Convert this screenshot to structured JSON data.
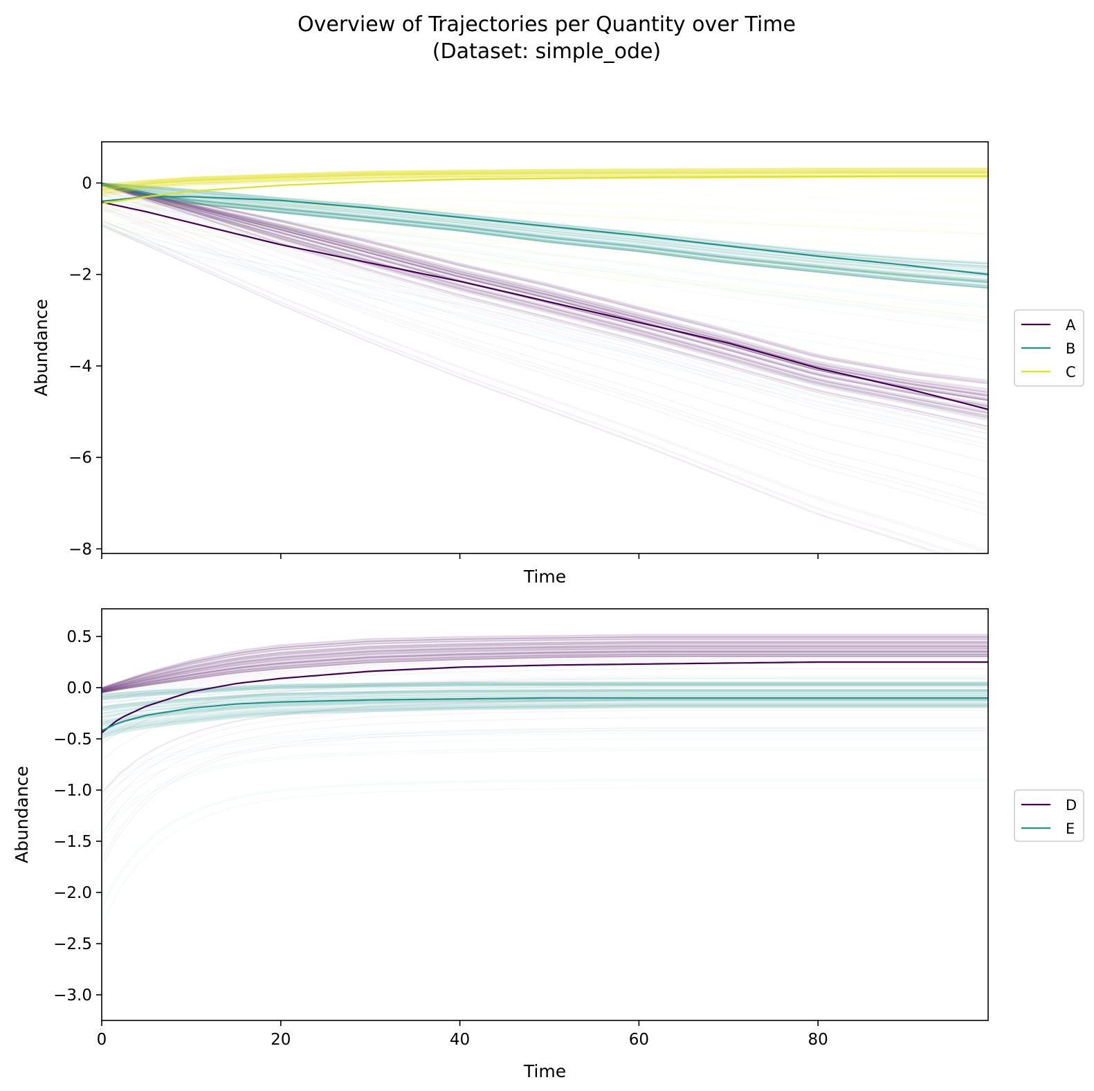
{
  "figure": {
    "title_line1": "Overview of Trajectories per Quantity over Time",
    "title_line2": "(Dataset: simple_ode)"
  },
  "chart_data": [
    {
      "type": "line",
      "xlabel": "Time",
      "ylabel": "Abundance",
      "xlim": [
        0,
        99
      ],
      "ylim": [
        -8.1,
        0.9
      ],
      "xticks": [
        0,
        20,
        40,
        60,
        80
      ],
      "xtick_labels_shown": false,
      "yticks": [
        0,
        -2,
        -4,
        -6,
        -8
      ],
      "ytick_labels": [
        "0",
        "−2",
        "−4",
        "−6",
        "−8"
      ],
      "grid": false,
      "legend_position": "right-center",
      "background_trajectories": "many faint semi-transparent sample trajectories per series",
      "x": [
        0,
        5,
        10,
        20,
        30,
        40,
        50,
        60,
        70,
        80,
        90,
        99
      ],
      "series": [
        {
          "name": "A",
          "color": "#440154",
          "values": [
            -0.42,
            -0.63,
            -0.87,
            -1.35,
            -1.75,
            -2.15,
            -2.6,
            -3.05,
            -3.5,
            -4.05,
            -4.5,
            -4.95
          ],
          "band_low": [
            -0.05,
            -0.38,
            -0.7,
            -1.35,
            -1.95,
            -2.5,
            -3.0,
            -3.5,
            -4.05,
            -4.6,
            -5.0,
            -5.4
          ],
          "band_high": [
            0.0,
            -0.2,
            -0.4,
            -0.8,
            -1.25,
            -1.75,
            -2.2,
            -2.7,
            -3.2,
            -3.75,
            -4.1,
            -4.3
          ]
        },
        {
          "name": "B",
          "color": "#21918c",
          "values": [
            -0.4,
            -0.3,
            -0.3,
            -0.38,
            -0.55,
            -0.75,
            -0.95,
            -1.15,
            -1.38,
            -1.6,
            -1.8,
            -2.0
          ],
          "band_low": [
            -0.05,
            -0.28,
            -0.45,
            -0.65,
            -0.85,
            -1.05,
            -1.3,
            -1.5,
            -1.75,
            -1.95,
            -2.15,
            -2.3
          ],
          "band_high": [
            0.0,
            -0.05,
            -0.12,
            -0.3,
            -0.45,
            -0.65,
            -0.85,
            -1.05,
            -1.25,
            -1.45,
            -1.6,
            -1.7
          ]
        },
        {
          "name": "C",
          "color": "#dde318",
          "values": [
            -0.45,
            -0.3,
            -0.18,
            -0.05,
            0.03,
            0.08,
            0.1,
            0.12,
            0.13,
            0.14,
            0.15,
            0.15
          ],
          "band_low": [
            -0.3,
            -0.12,
            -0.05,
            0.02,
            0.07,
            0.1,
            0.1,
            0.1,
            0.1,
            0.1,
            0.1,
            0.1
          ],
          "band_high": [
            0.0,
            0.08,
            0.15,
            0.22,
            0.28,
            0.3,
            0.32,
            0.33,
            0.34,
            0.35,
            0.35,
            0.35
          ]
        }
      ]
    },
    {
      "type": "line",
      "xlabel": "Time",
      "ylabel": "Abundance",
      "xlim": [
        0,
        99
      ],
      "ylim": [
        -3.25,
        0.77
      ],
      "xticks": [
        0,
        20,
        40,
        60,
        80
      ],
      "xtick_labels": [
        "0",
        "20",
        "40",
        "60",
        "80"
      ],
      "yticks": [
        0.5,
        0.0,
        -0.5,
        -1.0,
        -1.5,
        -2.0,
        -2.5,
        -3.0
      ],
      "ytick_labels": [
        "0.5",
        "0.0",
        "−0.5",
        "−1.0",
        "−1.5",
        "−2.0",
        "−2.5",
        "−3.0"
      ],
      "grid": false,
      "legend_position": "right-center",
      "background_trajectories": "many faint semi-transparent sample trajectories per series",
      "x": [
        0,
        2,
        5,
        10,
        15,
        20,
        30,
        40,
        50,
        60,
        70,
        80,
        90,
        99
      ],
      "series": [
        {
          "name": "D",
          "color": "#440154",
          "values": [
            -0.44,
            -0.3,
            -0.18,
            -0.04,
            0.04,
            0.09,
            0.16,
            0.2,
            0.22,
            0.23,
            0.24,
            0.25,
            0.25,
            0.25
          ],
          "band_low": [
            -0.05,
            -0.02,
            0.02,
            0.08,
            0.14,
            0.18,
            0.24,
            0.27,
            0.29,
            0.3,
            0.3,
            0.3,
            0.3,
            0.3
          ],
          "band_high": [
            0.0,
            0.06,
            0.15,
            0.27,
            0.36,
            0.42,
            0.48,
            0.5,
            0.51,
            0.52,
            0.52,
            0.52,
            0.52,
            0.52
          ]
        },
        {
          "name": "E",
          "color": "#21918c",
          "values": [
            -0.42,
            -0.34,
            -0.27,
            -0.2,
            -0.16,
            -0.14,
            -0.12,
            -0.11,
            -0.1,
            -0.1,
            -0.1,
            -0.1,
            -0.1,
            -0.1
          ],
          "band_low": [
            -0.5,
            -0.45,
            -0.4,
            -0.35,
            -0.3,
            -0.27,
            -0.24,
            -0.22,
            -0.21,
            -0.2,
            -0.2,
            -0.2,
            -0.2,
            -0.2
          ],
          "band_high": [
            -0.05,
            -0.04,
            -0.02,
            0.0,
            0.02,
            0.04,
            0.05,
            0.06,
            0.06,
            0.06,
            0.06,
            0.06,
            0.06,
            0.06
          ]
        }
      ]
    }
  ]
}
